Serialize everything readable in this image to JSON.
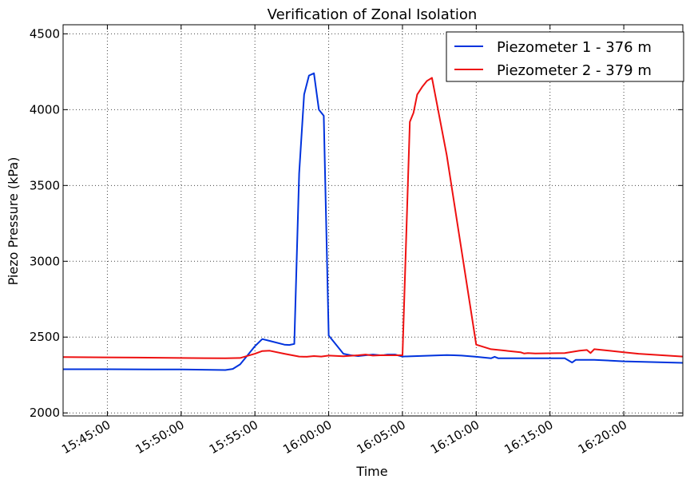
{
  "chart_data": {
    "type": "line",
    "title": "Verification of Zonal Isolation",
    "xlabel": "Time",
    "ylabel": "Piezo Pressure (kPa)",
    "xlim": [
      "15:42:00",
      "16:24:00"
    ],
    "ylim": [
      1980,
      4560
    ],
    "xticks": [
      "15:45:00",
      "15:50:00",
      "15:55:00",
      "16:00:00",
      "16:05:00",
      "16:10:00",
      "16:15:00",
      "16:20:00"
    ],
    "yticks": [
      2000,
      2500,
      3000,
      3500,
      4000,
      4500
    ],
    "grid": true,
    "legend_position": "top-right",
    "series": [
      {
        "name": "Piezometer 1 - 376 m",
        "color": "#0033dd",
        "x": [
          "15:42:00",
          "15:45:00",
          "15:48:00",
          "15:50:00",
          "15:52:00",
          "15:53:00",
          "15:53:30",
          "15:54:00",
          "15:54:30",
          "15:55:00",
          "15:55:30",
          "15:56:00",
          "15:57:00",
          "15:57:20",
          "15:57:40",
          "15:58:00",
          "15:58:20",
          "15:58:40",
          "15:59:00",
          "15:59:20",
          "15:59:40",
          "16:00:00",
          "16:01:00",
          "16:01:30",
          "16:02:00",
          "16:02:30",
          "16:03:00",
          "16:03:30",
          "16:03:45",
          "16:04:00",
          "16:04:30",
          "16:05:00",
          "16:08:00",
          "16:08:30",
          "16:09:00",
          "16:10:00",
          "16:11:00",
          "16:11:15",
          "16:11:30",
          "16:12:00",
          "16:14:30",
          "16:15:00",
          "16:16:00",
          "16:16:30",
          "16:16:45",
          "16:17:00",
          "16:18:00",
          "16:20:00",
          "16:24:00"
        ],
        "y": [
          2288,
          2288,
          2287,
          2287,
          2284,
          2283,
          2290,
          2320,
          2380,
          2440,
          2487,
          2475,
          2450,
          2448,
          2455,
          3580,
          4100,
          4225,
          4240,
          4000,
          3960,
          2510,
          2390,
          2380,
          2375,
          2380,
          2385,
          2380,
          2382,
          2385,
          2385,
          2372,
          2382,
          2380,
          2378,
          2370,
          2360,
          2370,
          2360,
          2360,
          2360,
          2360,
          2360,
          2332,
          2350,
          2350,
          2350,
          2340,
          2330
        ]
      },
      {
        "name": "Piezometer 2 - 379 m",
        "color": "#ee1111",
        "x": [
          "15:42:00",
          "15:47:00",
          "15:50:00",
          "15:53:00",
          "15:54:00",
          "15:55:00",
          "15:55:30",
          "15:56:00",
          "15:57:00",
          "15:58:00",
          "15:58:30",
          "15:59:00",
          "15:59:30",
          "16:00:00",
          "16:01:00",
          "16:02:00",
          "16:02:30",
          "16:03:00",
          "16:03:30",
          "16:04:00",
          "16:04:30",
          "16:05:00",
          "16:05:30",
          "16:05:45",
          "16:06:00",
          "16:06:20",
          "16:06:40",
          "16:07:00",
          "16:08:00",
          "16:10:00",
          "16:11:00",
          "16:12:00",
          "16:13:00",
          "16:13:15",
          "16:13:30",
          "16:14:00",
          "16:16:00",
          "16:17:00",
          "16:17:30",
          "16:17:45",
          "16:18:00",
          "16:19:00",
          "16:20:00",
          "16:21:00",
          "16:24:00"
        ],
        "y": [
          2368,
          2365,
          2362,
          2360,
          2362,
          2390,
          2408,
          2410,
          2390,
          2372,
          2370,
          2375,
          2372,
          2378,
          2374,
          2380,
          2385,
          2378,
          2380,
          2380,
          2380,
          2380,
          3920,
          3980,
          4100,
          4150,
          4190,
          4210,
          3700,
          2450,
          2420,
          2410,
          2400,
          2392,
          2395,
          2392,
          2395,
          2410,
          2415,
          2395,
          2420,
          2410,
          2400,
          2390,
          2372
        ]
      }
    ]
  }
}
